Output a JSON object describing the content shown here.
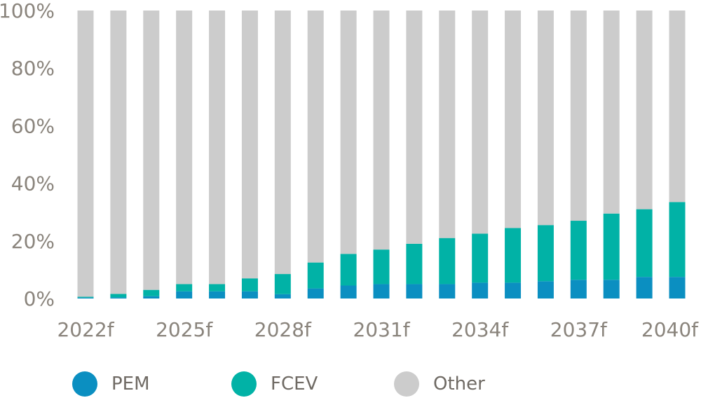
{
  "chart_data": {
    "type": "bar",
    "stacked": true,
    "categories": [
      "2022f",
      "2023f",
      "2024f",
      "2025f",
      "2026f",
      "2027f",
      "2028f",
      "2029f",
      "2030f",
      "2031f",
      "2032f",
      "2033f",
      "2034f",
      "2035f",
      "2036f",
      "2037f",
      "2038f",
      "2039f",
      "2040f"
    ],
    "x_tick_labels": [
      "2022f",
      "2025f",
      "2028f",
      "2031f",
      "2034f",
      "2037f",
      "2040f"
    ],
    "y_tick_labels": [
      "0%",
      "20%",
      "40%",
      "60%",
      "80%",
      "100%"
    ],
    "ylim": [
      0,
      100
    ],
    "series": [
      {
        "name": "PEM",
        "color": "#0b8fc1",
        "values": [
          0.3,
          0.4,
          0.8,
          2.5,
          2.5,
          2.5,
          1.5,
          3.5,
          4.5,
          5,
          5,
          5,
          5.5,
          5.5,
          6,
          6.5,
          6.5,
          7.5,
          7.5
        ]
      },
      {
        "name": "FCEV",
        "color": "#01b2a6",
        "values": [
          0.3,
          1.2,
          2.2,
          2.5,
          2.5,
          4.5,
          7,
          9,
          11,
          12,
          14,
          16,
          17,
          19,
          19.5,
          20.5,
          23,
          23.5,
          26
        ]
      },
      {
        "name": "Other",
        "color": "#cccccc",
        "values": [
          99.4,
          98.4,
          97,
          95,
          95,
          93,
          91.5,
          87.5,
          84.5,
          83,
          81,
          79,
          77.5,
          75.5,
          74.5,
          73,
          70.5,
          69,
          66.5
        ]
      }
    ],
    "legend": {
      "position": "bottom"
    },
    "grid": false
  }
}
